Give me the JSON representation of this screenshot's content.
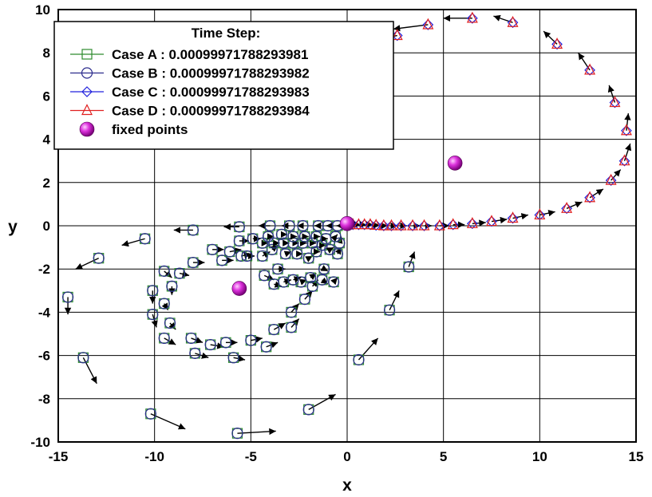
{
  "chart_data": {
    "type": "scatter",
    "xlabel": "x",
    "ylabel": "y",
    "xlim": [
      -15,
      15
    ],
    "ylim": [
      -10,
      10
    ],
    "xticks": [
      "-15",
      "-10",
      "-5",
      "0",
      "5",
      "10",
      "15"
    ],
    "yticks": [
      "-10",
      "-8",
      "-6",
      "-4",
      "-2",
      "0",
      "2",
      "4",
      "6",
      "8",
      "10"
    ],
    "grid": true,
    "legend": {
      "placement": "top-left",
      "title": "Time Step:",
      "entries": [
        {
          "label": "Case A : 0.00099971788293981",
          "marker": "square",
          "color": "#2e8b2e"
        },
        {
          "label": "Case B : 0.00099971788293982",
          "marker": "circle",
          "color": "#2b2b8c"
        },
        {
          "label": "Case C : 0.00099971788293983",
          "marker": "diamond",
          "color": "#2222dd"
        },
        {
          "label": "Case D : 0.00099971788293984",
          "marker": "triangle",
          "color": "#e02020"
        },
        {
          "label": "fixed points",
          "marker": "sphere",
          "color": "#cc22cc"
        }
      ]
    },
    "fixed_points": [
      [
        0,
        0.1
      ],
      [
        5.6,
        2.9
      ],
      [
        -5.6,
        -2.9
      ]
    ],
    "series": [
      {
        "case": "A/B",
        "markers": [
          "square",
          "circle"
        ],
        "points": [
          [
            -14.5,
            -3.3,
            0.0,
            -0.8
          ],
          [
            -13.7,
            -6.1,
            0.7,
            -1.2
          ],
          [
            -12.9,
            -1.5,
            -1.2,
            -0.5
          ],
          [
            -10.5,
            -0.6,
            -1.2,
            -0.3
          ],
          [
            -10.2,
            -8.7,
            1.8,
            -0.7
          ],
          [
            -8.0,
            -0.2,
            -1.0,
            0.0
          ],
          [
            -5.7,
            -9.6,
            2.0,
            0.1
          ],
          [
            -5.6,
            -0.05,
            -0.8,
            0.0
          ],
          [
            -4.0,
            0.0,
            -0.6,
            0.0
          ],
          [
            -3.0,
            0.0,
            -0.4,
            0.0
          ],
          [
            -2.3,
            0.0,
            -0.3,
            0.0
          ],
          [
            -1.5,
            0.0,
            -0.2,
            0.0
          ],
          [
            -1.0,
            0.0,
            -0.1,
            0.0
          ],
          [
            -0.5,
            0.0,
            -0.06,
            0.0
          ],
          [
            -2.0,
            -8.5,
            1.4,
            0.7
          ],
          [
            0.6,
            -6.2,
            1.0,
            1.0
          ],
          [
            2.2,
            -3.9,
            0.5,
            0.9
          ],
          [
            3.2,
            -1.9,
            0.3,
            0.7
          ],
          [
            -10.1,
            -3.0,
            0.0,
            -0.6
          ],
          [
            -10.1,
            -4.1,
            0.2,
            -0.6
          ],
          [
            -9.5,
            -5.2,
            0.6,
            -0.3
          ],
          [
            -8.1,
            -5.2,
            0.6,
            -0.2
          ],
          [
            -7.9,
            -5.9,
            0.7,
            -0.2
          ],
          [
            -7.1,
            -5.5,
            0.7,
            -0.1
          ],
          [
            -5.9,
            -6.1,
            0.6,
            -0.1
          ],
          [
            -6.3,
            -5.4,
            0.6,
            0.0
          ],
          [
            -5.0,
            -5.3,
            0.6,
            0.1
          ],
          [
            -4.2,
            -5.6,
            0.6,
            0.2
          ],
          [
            -3.8,
            -4.8,
            0.6,
            0.3
          ],
          [
            -2.9,
            -4.7,
            0.4,
            0.4
          ],
          [
            -2.9,
            -4.0,
            0.4,
            0.4
          ],
          [
            -2.2,
            -3.4,
            0.4,
            0.4
          ],
          [
            -1.8,
            -2.8,
            0.3,
            0.3
          ],
          [
            -2.4,
            -2.6,
            0.3,
            0.1
          ],
          [
            -1.9,
            -2.4,
            0.3,
            0.2
          ],
          [
            -1.3,
            -2.5,
            0.3,
            -0.2
          ],
          [
            -1.2,
            -2.0,
            0.2,
            -0.1
          ],
          [
            -0.7,
            -2.6,
            0.2,
            0.2
          ],
          [
            -0.5,
            -1.3,
            0.2,
            0.3
          ],
          [
            -0.4,
            -0.8,
            0.1,
            0.3
          ],
          [
            -9.5,
            -3.6,
            0.2,
            -0.3
          ],
          [
            -9.2,
            -4.5,
            0.3,
            -0.3
          ],
          [
            -9.1,
            -2.8,
            0.0,
            -0.4
          ],
          [
            -9.5,
            -2.1,
            0.4,
            -0.3
          ],
          [
            -8.7,
            -2.2,
            0.5,
            -0.1
          ],
          [
            -8.0,
            -1.7,
            0.6,
            0.0
          ],
          [
            -7.0,
            -1.1,
            0.6,
            0.0
          ],
          [
            -6.5,
            -1.6,
            0.6,
            0.0
          ],
          [
            -6.1,
            -1.2,
            0.6,
            0.1
          ],
          [
            -5.5,
            -1.4,
            0.5,
            0.1
          ],
          [
            -5.2,
            -1.4,
            0.4,
            0.0
          ],
          [
            -4.3,
            -2.3,
            0.5,
            -0.2
          ],
          [
            -3.8,
            -2.7,
            0.4,
            -0.1
          ],
          [
            -3.3,
            -2.6,
            0.4,
            0.1
          ],
          [
            -2.8,
            -2.5,
            0.4,
            0.1
          ],
          [
            -3.6,
            -2.0,
            0.4,
            0.0
          ],
          [
            -4.4,
            -1.4,
            0.4,
            0.2
          ],
          [
            -3.9,
            -1.1,
            0.3,
            0.2
          ],
          [
            -3.2,
            -1.3,
            0.3,
            0.1
          ],
          [
            -2.6,
            -1.3,
            0.3,
            0.0
          ],
          [
            -2.0,
            -1.5,
            0.2,
            0.1
          ],
          [
            -1.6,
            -1.2,
            0.2,
            0.0
          ],
          [
            -4.4,
            -0.8,
            0.3,
            0.0
          ],
          [
            -3.8,
            -0.8,
            0.3,
            0.0
          ],
          [
            -3.3,
            -0.8,
            0.3,
            0.0
          ],
          [
            -2.8,
            -0.8,
            0.3,
            0.0
          ],
          [
            -2.3,
            -0.8,
            0.2,
            0.0
          ],
          [
            -1.8,
            -0.8,
            0.2,
            0.0
          ],
          [
            -1.3,
            -0.9,
            0.2,
            0.0
          ],
          [
            -0.9,
            -1.1,
            0.2,
            0.1
          ],
          [
            -5.6,
            -0.7,
            0.5,
            0.0
          ],
          [
            -4.9,
            -0.6,
            0.4,
            0.0
          ],
          [
            -4.1,
            -0.5,
            0.3,
            0.0
          ],
          [
            -3.4,
            -0.4,
            0.3,
            0.0
          ],
          [
            -2.8,
            -0.5,
            0.2,
            0.0
          ],
          [
            -2.2,
            -0.5,
            0.2,
            0.0
          ],
          [
            -1.6,
            -0.5,
            0.2,
            0.0
          ],
          [
            -1.1,
            -0.6,
            0.1,
            0.0
          ],
          [
            -0.6,
            -0.5,
            0.1,
            0.1
          ]
        ]
      },
      {
        "case": "C/D",
        "markers": [
          "diamond",
          "triangle"
        ],
        "points": [
          [
            0.3,
            0.05,
            0.1,
            0.0
          ],
          [
            0.6,
            0.05,
            0.1,
            0.0
          ],
          [
            0.9,
            0.05,
            0.1,
            0.0
          ],
          [
            1.2,
            0.05,
            0.15,
            0.0
          ],
          [
            1.5,
            0.02,
            0.2,
            0.0
          ],
          [
            1.9,
            0.0,
            0.2,
            0.0
          ],
          [
            2.3,
            0.0,
            0.3,
            0.0
          ],
          [
            2.8,
            0.0,
            0.3,
            0.0
          ],
          [
            3.4,
            0.0,
            0.4,
            0.0
          ],
          [
            4.0,
            0.0,
            0.4,
            0.0
          ],
          [
            4.8,
            0.0,
            0.5,
            0.0
          ],
          [
            5.5,
            0.05,
            0.6,
            0.0
          ],
          [
            6.5,
            0.1,
            0.7,
            0.05
          ],
          [
            7.5,
            0.2,
            0.8,
            0.1
          ],
          [
            8.6,
            0.35,
            0.8,
            0.15
          ],
          [
            10.0,
            0.5,
            0.8,
            0.15
          ],
          [
            11.4,
            0.8,
            0.8,
            0.3
          ],
          [
            12.6,
            1.3,
            0.7,
            0.4
          ],
          [
            13.7,
            2.1,
            0.5,
            0.5
          ],
          [
            14.4,
            3.0,
            0.3,
            0.8
          ],
          [
            14.5,
            4.4,
            0.1,
            0.8
          ],
          [
            13.9,
            5.7,
            -0.3,
            0.8
          ],
          [
            12.6,
            7.2,
            -0.6,
            0.8
          ],
          [
            10.9,
            8.4,
            -0.7,
            0.6
          ],
          [
            8.6,
            9.4,
            -1.0,
            0.3
          ],
          [
            6.5,
            9.6,
            -1.5,
            0.0
          ],
          [
            4.2,
            9.3,
            -1.8,
            -0.2
          ],
          [
            2.6,
            8.8,
            -1.8,
            -0.3
          ]
        ]
      }
    ]
  }
}
